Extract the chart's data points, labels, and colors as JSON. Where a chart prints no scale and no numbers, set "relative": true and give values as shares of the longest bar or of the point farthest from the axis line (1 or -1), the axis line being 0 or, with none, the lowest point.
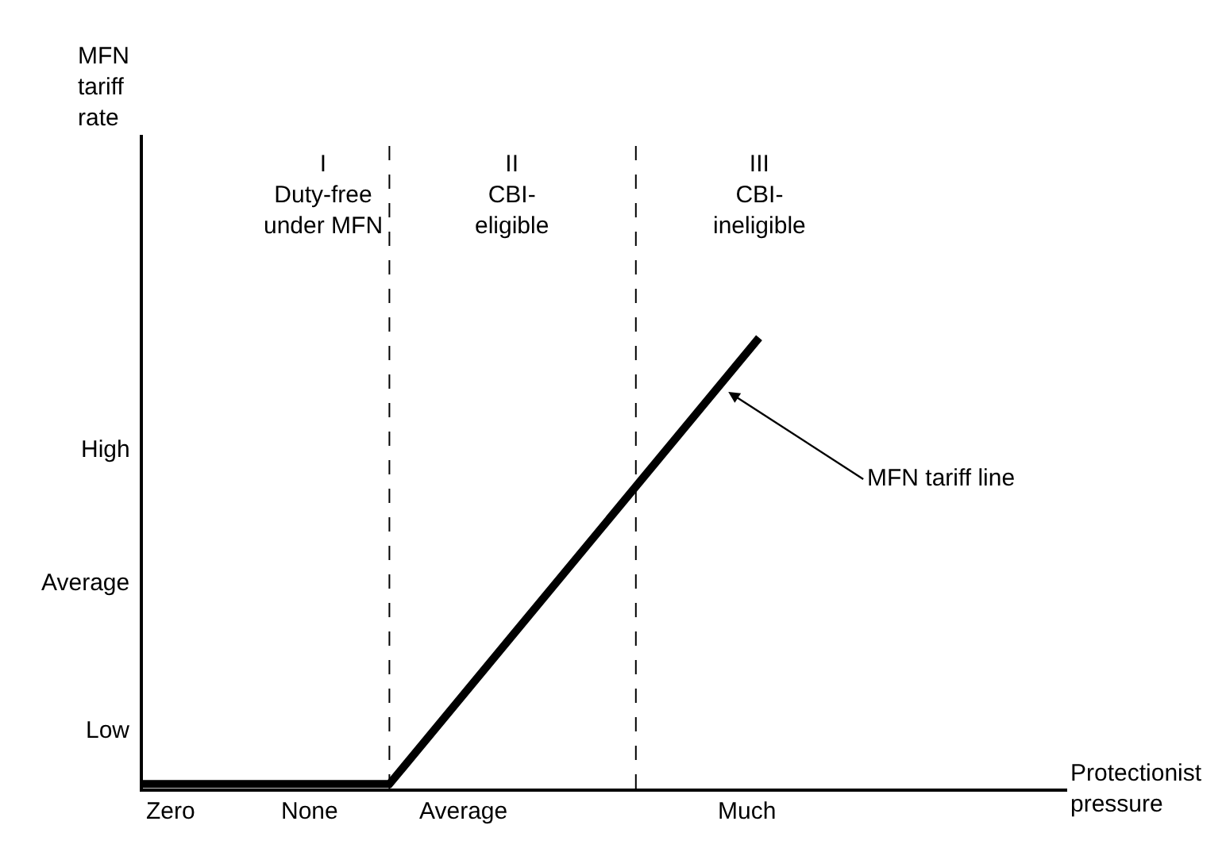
{
  "chart_data": {
    "type": "line",
    "relative": true,
    "categories": [
      null,
      null,
      null,
      null,
      null,
      null
    ],
    "series": [
      {
        "color": "#000000",
        "values": [
          0.01,
          0.01,
          0.01,
          0.34,
          0.67,
          1
        ]
      }
    ],
    "annotations": [
      "Zero",
      "None",
      "Average",
      "Much",
      "Low",
      "Average",
      "High",
      "I\nDuty-free\nunder MFN",
      "II\nCBI-\neligible",
      "III\nCBI-\nineligible",
      "MFN tariff line",
      "MFN\ntariff\nrate",
      "Protectionist\npressure"
    ],
    "marker": "none",
    "line_style": "solid"
  }
}
